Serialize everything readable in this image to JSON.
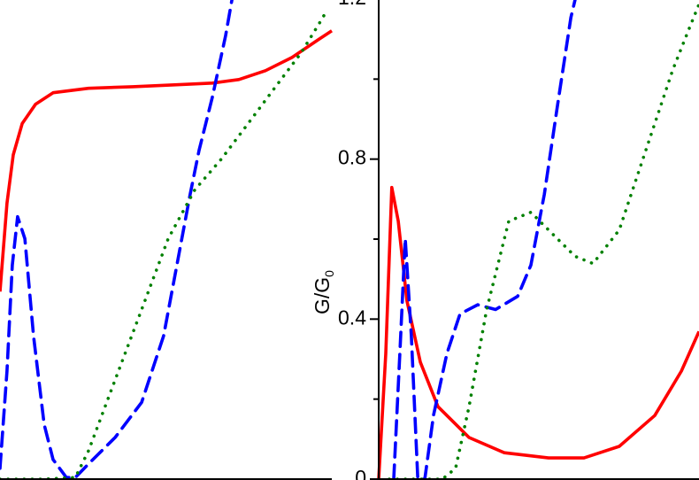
{
  "chart_data": [
    {
      "type": "line",
      "xlim": [
        0,
        1
      ],
      "ylim": [
        0,
        1.2
      ],
      "spines": [
        "bottom"
      ],
      "series": [
        {
          "color": "#ff0000",
          "style": "solid",
          "x": [
            0,
            0.021,
            0.04,
            0.067,
            0.107,
            0.16,
            0.267,
            0.4,
            0.533,
            0.64,
            0.72,
            0.8,
            0.88,
            0.96,
            1
          ],
          "values": [
            0.469,
            0.69,
            0.811,
            0.889,
            0.937,
            0.966,
            0.977,
            0.981,
            0.986,
            0.99,
            0.999,
            1.021,
            1.054,
            1.099,
            1.121
          ]
        },
        {
          "color": "#0000ff",
          "style": "dashed",
          "x": [
            0,
            0.021,
            0.037,
            0.053,
            0.075,
            0.101,
            0.133,
            0.16,
            0.2,
            0.227,
            0.267,
            0.347,
            0.427,
            0.493,
            0.533,
            0.573,
            0.6,
            0.64,
            0.68,
            0.699
          ],
          "values": [
            0.027,
            0.27,
            0.535,
            0.656,
            0.601,
            0.358,
            0.137,
            0.049,
            0.004,
            0.004,
            0.038,
            0.104,
            0.192,
            0.358,
            0.535,
            0.712,
            0.822,
            0.955,
            1.109,
            1.198
          ]
        },
        {
          "color": "#008000",
          "style": "dotted",
          "x": [
            0,
            0.133,
            0.227,
            0.267,
            0.347,
            0.427,
            0.507,
            0.587,
            0.667,
            0.747,
            0.827,
            0.907,
            0.973,
            0.987
          ],
          "values": [
            0,
            0,
            0.004,
            0.071,
            0.248,
            0.424,
            0.601,
            0.723,
            0.8,
            0.888,
            0.977,
            1.065,
            1.154,
            1.176
          ]
        }
      ]
    },
    {
      "type": "line",
      "xlim": [
        0,
        1
      ],
      "ylim": [
        0,
        1.2
      ],
      "spines": [
        "left",
        "bottom"
      ],
      "ylabel": "G/G",
      "ylabel_subscript": "0",
      "yticks": [
        0,
        0.4,
        0.8,
        1.2
      ],
      "minor_yticks": [
        0.2,
        0.6,
        1.0
      ],
      "series": [
        {
          "color": "#ff0000",
          "style": "solid",
          "x": [
            0,
            0.022,
            0.041,
            0.061,
            0.088,
            0.13,
            0.185,
            0.282,
            0.392,
            0.53,
            0.641,
            0.751,
            0.862,
            0.945,
            1
          ],
          "values": [
            0,
            0.314,
            0.729,
            0.645,
            0.446,
            0.292,
            0.181,
            0.104,
            0.066,
            0.053,
            0.053,
            0.082,
            0.159,
            0.27,
            0.369
          ]
        },
        {
          "color": "#0000ff",
          "style": "dashed",
          "x": [
            0.047,
            0.066,
            0.083,
            0.102,
            0.122,
            0.144,
            0.171,
            0.213,
            0.254,
            0.309,
            0.365,
            0.434,
            0.475,
            0.517,
            0.558,
            0.6,
            0.613
          ],
          "values": [
            0,
            0.314,
            0.601,
            0.358,
            0,
            0,
            0.159,
            0.314,
            0.413,
            0.436,
            0.424,
            0.457,
            0.535,
            0.712,
            0.933,
            1.154,
            1.198
          ]
        },
        {
          "color": "#008000",
          "style": "dotted",
          "x": [
            0.033,
            0.199,
            0.24,
            0.282,
            0.337,
            0.406,
            0.475,
            0.53,
            0.613,
            0.669,
            0.751,
            0.834,
            0.917,
            0.972,
            1
          ],
          "values": [
            0,
            0,
            0.027,
            0.181,
            0.424,
            0.645,
            0.667,
            0.623,
            0.557,
            0.539,
            0.623,
            0.822,
            1.021,
            1.132,
            1.187
          ]
        }
      ]
    }
  ]
}
